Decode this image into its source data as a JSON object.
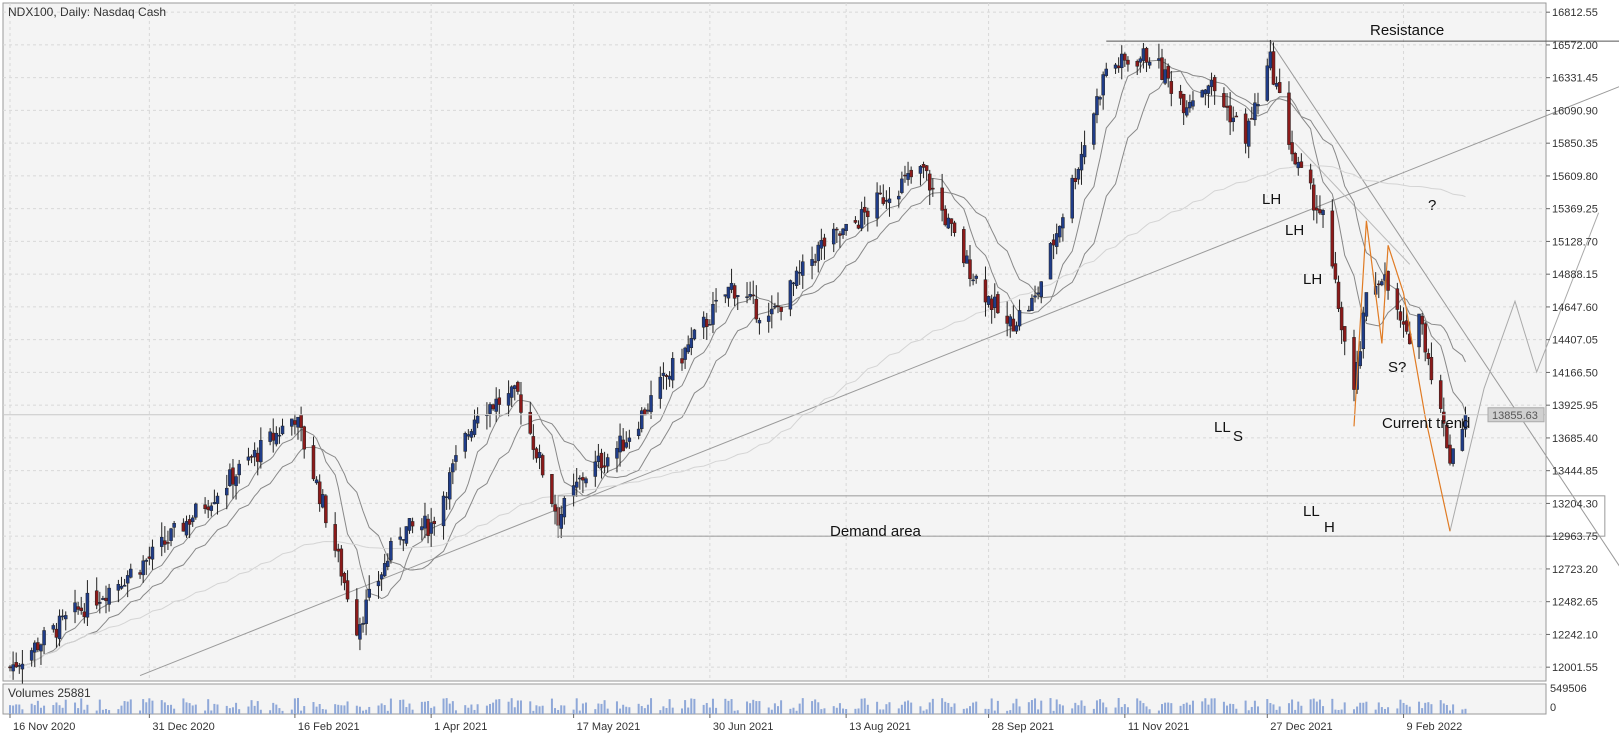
{
  "header": {
    "symbol_label": "NDX100, Daily:  Nasdaq Cash"
  },
  "volume_panel": {
    "label": "Volumes 25881",
    "scale_max": "549506",
    "scale_min": "0"
  },
  "annotations": {
    "resistance": "Resistance",
    "demand_area": "Demand area",
    "current_trend": "Current trend",
    "question": "?",
    "s_question": "S?",
    "lh1": "LH",
    "lh2": "LH",
    "lh3": "LH",
    "ll1": "LL",
    "s1": "S",
    "ll2": "LL",
    "h1": "H"
  },
  "colors": {
    "background": "#f4f4f4",
    "grid": "#d8d8d8",
    "bull_candle": "#1f3c88",
    "bear_candle": "#8b1a1a",
    "ma_line": "#888888",
    "trendline": "#9a9a9a",
    "pattern_line": "#e07b24",
    "volume_bar": "#8fa8d8",
    "price_box": "#d0d0d0"
  },
  "chart_data": {
    "type": "candlestick",
    "title": "NDX100, Daily:  Nasdaq Cash",
    "y_ticks": [
      "16812.55",
      "16572.00",
      "16331.45",
      "16090.90",
      "15850.35",
      "15609.80",
      "15369.25",
      "15128.70",
      "14888.15",
      "14647.60",
      "14407.05",
      "14166.50",
      "13925.95",
      "13685.40",
      "13444.85",
      "13204.30",
      "12963.75",
      "12723.20",
      "12482.65",
      "12242.10",
      "12001.55"
    ],
    "ylim": [
      11900,
      16880
    ],
    "x_ticks": [
      "16 Nov 2020",
      "31 Dec 2020",
      "16 Feb 2021",
      "1 Apr 2021",
      "17 May 2021",
      "30 Jun 2021",
      "13 Aug 2021",
      "28 Sep 2021",
      "11 Nov 2021",
      "27 Dec 2021",
      "9 Feb 2022"
    ],
    "current_price": "13855.63",
    "anchors": [
      [
        "2020-11-16",
        12000
      ],
      [
        "2020-12-07",
        12400
      ],
      [
        "2020-12-31",
        12800
      ],
      [
        "2021-01-20",
        13250
      ],
      [
        "2021-02-05",
        13600
      ],
      [
        "2021-02-16",
        13850
      ],
      [
        "2021-02-25",
        13200
      ],
      [
        "2021-03-08",
        12300
      ],
      [
        "2021-03-22",
        13000
      ],
      [
        "2021-04-01",
        13050
      ],
      [
        "2021-04-16",
        13900
      ],
      [
        "2021-04-29",
        14000
      ],
      [
        "2021-05-12",
        13100
      ],
      [
        "2021-05-20",
        13400
      ],
      [
        "2021-06-02",
        13650
      ],
      [
        "2021-06-15",
        14100
      ],
      [
        "2021-07-07",
        14800
      ],
      [
        "2021-07-19",
        14550
      ],
      [
        "2021-08-05",
        15100
      ],
      [
        "2021-08-13",
        15200
      ],
      [
        "2021-08-27",
        15500
      ],
      [
        "2021-09-07",
        15650
      ],
      [
        "2021-09-20",
        15000
      ],
      [
        "2021-10-04",
        14500
      ],
      [
        "2021-10-13",
        14700
      ],
      [
        "2021-10-27",
        15700
      ],
      [
        "2021-11-05",
        16400
      ],
      [
        "2021-11-19",
        16500
      ],
      [
        "2021-11-30",
        16150
      ],
      [
        "2021-12-08",
        16300
      ],
      [
        "2021-12-20",
        15900
      ],
      [
        "2021-12-28",
        16450
      ],
      [
        "2022-01-05",
        15700
      ],
      [
        "2022-01-14",
        15300
      ],
      [
        "2022-01-24",
        14000
      ],
      [
        "2022-01-28",
        14700
      ],
      [
        "2022-02-02",
        14900
      ],
      [
        "2022-02-10",
        14400
      ],
      [
        "2022-02-14",
        14600
      ],
      [
        "2022-02-24",
        13550
      ],
      [
        "2022-03-01",
        13855
      ]
    ],
    "resistance_level": 16600,
    "demand_area": [
      12963.75,
      13260
    ],
    "projection": [
      [
        "2022-02-24",
        13000
      ],
      [
        "2022-03-07",
        14050
      ],
      [
        "2022-03-17",
        14690
      ],
      [
        "2022-03-24",
        14170
      ],
      [
        "2022-04-13",
        15340
      ]
    ]
  }
}
